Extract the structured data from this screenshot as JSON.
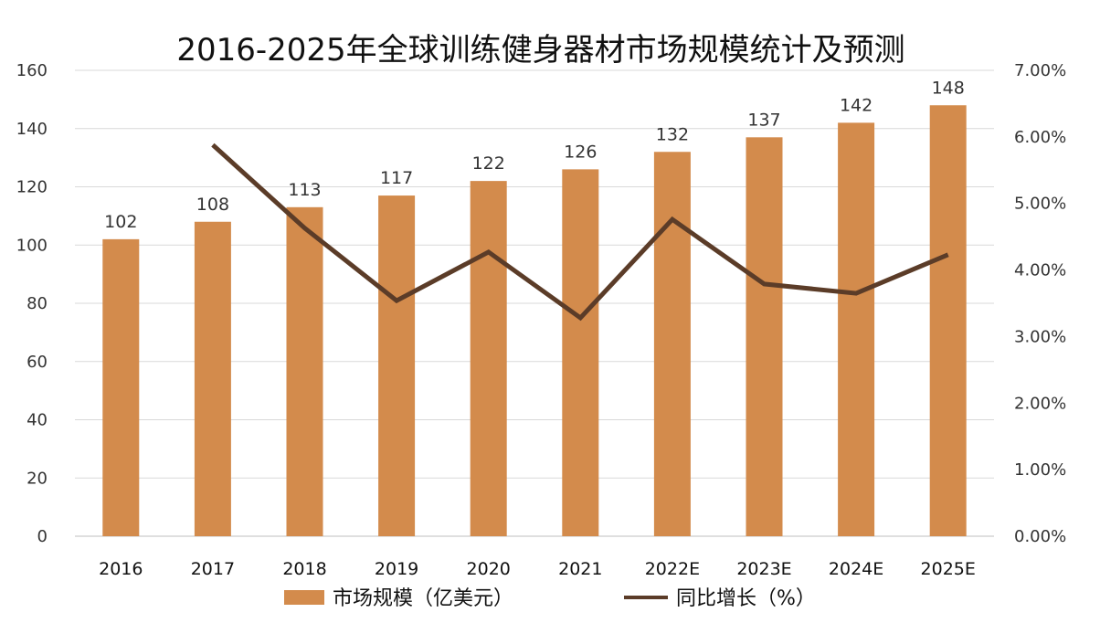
{
  "chart_data": {
    "type": "bar",
    "title": "2016-2025年全球训练健身器材市场规模统计及预测",
    "categories": [
      "2016",
      "2017",
      "2018",
      "2019",
      "2020",
      "2021",
      "2022E",
      "2023E",
      "2024E",
      "2025E"
    ],
    "series": [
      {
        "name": "市场规模（亿美元）",
        "type": "bar",
        "axis": "left",
        "values": [
          102,
          108,
          113,
          117,
          122,
          126,
          132,
          137,
          142,
          148
        ],
        "data_labels": [
          "102",
          "108",
          "113",
          "117",
          "122",
          "126",
          "132",
          "137",
          "142",
          "148"
        ]
      },
      {
        "name": "同比增长（%）",
        "type": "line",
        "axis": "right",
        "values": [
          null,
          5.88,
          4.63,
          3.54,
          4.27,
          3.28,
          4.76,
          3.79,
          3.65,
          4.23
        ]
      }
    ],
    "y_left": {
      "min": 0,
      "max": 160,
      "ticks": [
        "0",
        "20",
        "40",
        "60",
        "80",
        "100",
        "120",
        "140",
        "160"
      ]
    },
    "y_right": {
      "min": 0,
      "max": 7,
      "ticks": [
        "0.00%",
        "1.00%",
        "2.00%",
        "3.00%",
        "4.00%",
        "5.00%",
        "6.00%",
        "7.00%"
      ]
    },
    "grid": true,
    "legend_position": "bottom"
  },
  "colors": {
    "bar": "#D38B4C",
    "line": "#5B3C28",
    "grid": "#D9D9D9",
    "axis": "#BFBFBF"
  }
}
